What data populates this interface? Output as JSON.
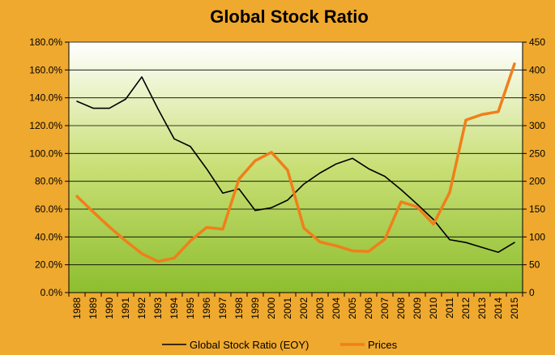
{
  "chart_data": {
    "type": "line",
    "title": "Global Stock Ratio",
    "categories": [
      "1988",
      "1989",
      "1990",
      "1991",
      "1992",
      "1993",
      "1994",
      "1995",
      "1996",
      "1997",
      "1998",
      "1999",
      "2000",
      "2001",
      "2002",
      "2003",
      "2004",
      "2005",
      "2006",
      "2007",
      "2008",
      "2009",
      "2010",
      "2011",
      "2012",
      "2013",
      "2014",
      "2015"
    ],
    "series": [
      {
        "name": "Global Stock Ratio (EOY)",
        "axis": "left",
        "color": "#000000",
        "values": [
          137.5,
          132.5,
          132.5,
          139.0,
          155.0,
          132.0,
          110.5,
          105.0,
          89.0,
          71.5,
          74.5,
          59.0,
          61.0,
          66.5,
          78.0,
          86.0,
          92.5,
          96.5,
          89.0,
          83.5,
          74.0,
          63.5,
          52.5,
          38.0,
          36.0,
          32.5,
          29.0,
          36.0
        ]
      },
      {
        "name": "Prices",
        "axis": "right",
        "color": "#F07F1A",
        "values": [
          173,
          145,
          118,
          93,
          70,
          56,
          62,
          93,
          117,
          114,
          204,
          237,
          252,
          220,
          116,
          91,
          84,
          75,
          74,
          96,
          163,
          154,
          123,
          180,
          310,
          320,
          325,
          411
        ]
      }
    ],
    "y_left": {
      "min": 0,
      "max": 180,
      "step": 20,
      "format": "percent1"
    },
    "y_right": {
      "min": 0,
      "max": 450,
      "step": 50
    },
    "grid": true,
    "legend_position": "bottom"
  }
}
